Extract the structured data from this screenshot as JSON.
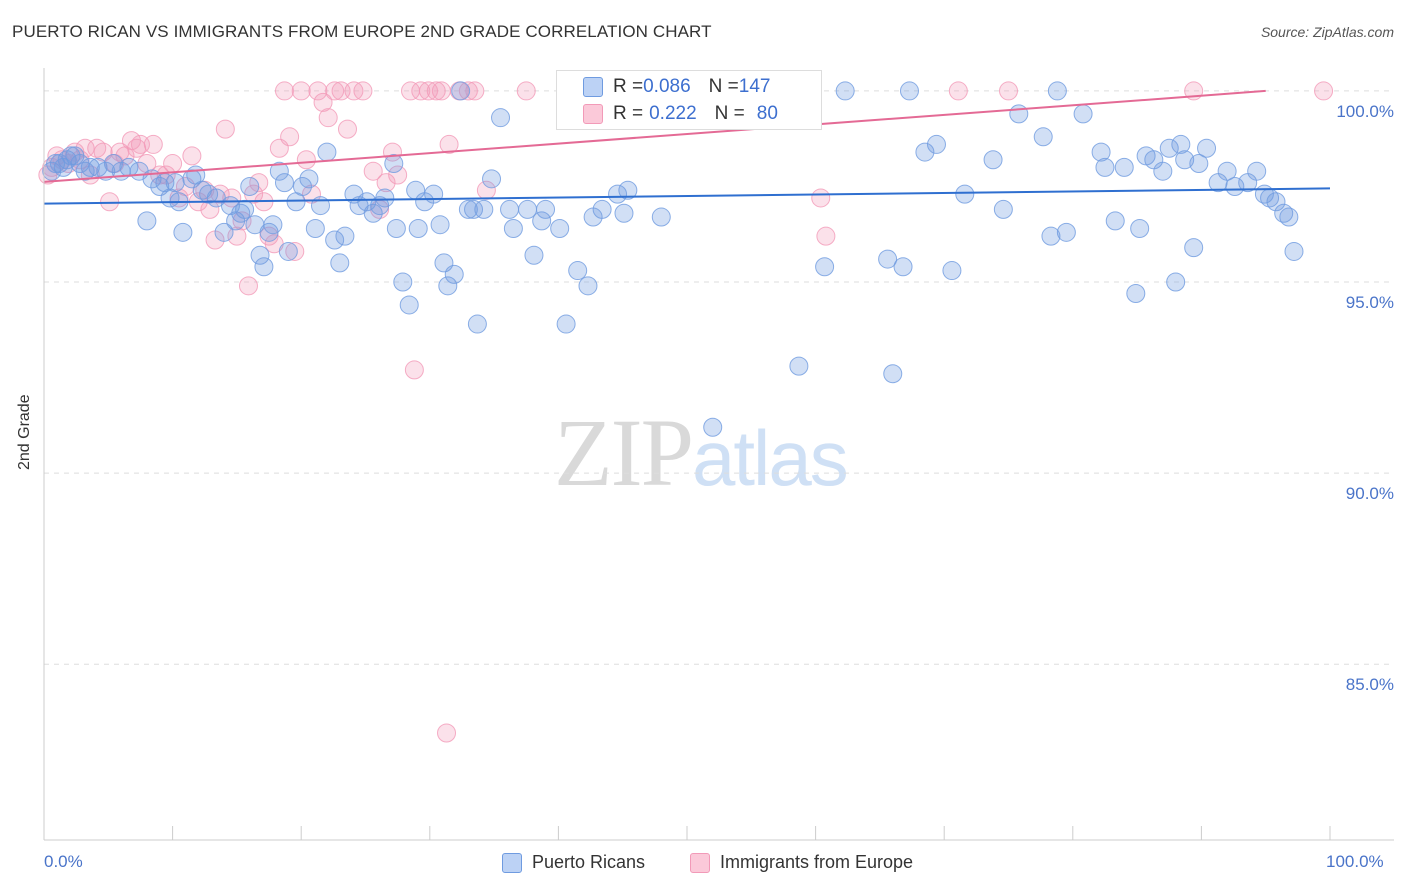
{
  "title": "PUERTO RICAN VS IMMIGRANTS FROM EUROPE 2ND GRADE CORRELATION CHART",
  "source": "Source: ZipAtlas.com",
  "watermark": {
    "zip": "ZIP",
    "atlas": "atlas"
  },
  "colors": {
    "blue": "#6f9be0",
    "blue_line": "#2f6fd0",
    "pink": "#f29ab8",
    "pink_line": "#e46a95",
    "tick_text": "#4a74c9"
  },
  "legend_box": {
    "rows": [
      {
        "r_label": "R = ",
        "r_value": "0.086",
        "n_label": "N = ",
        "n_value": "147"
      },
      {
        "r_label": "R = ",
        "r_value": "0.222",
        "n_label": "N = ",
        "n_value": "80"
      }
    ]
  },
  "chart_data": {
    "type": "scatter",
    "title": "PUERTO RICAN VS IMMIGRANTS FROM EUROPE 2ND GRADE CORRELATION CHART",
    "xlabel": "",
    "ylabel": "2nd Grade",
    "xlim": [
      0,
      100
    ],
    "ylim": [
      80.4,
      100.6
    ],
    "x_tick_labels": [
      "0.0%",
      "100.0%"
    ],
    "y_ticks": [
      85,
      90,
      95,
      100
    ],
    "y_tick_labels": [
      "85.0%",
      "90.0%",
      "95.0%",
      "100.0%"
    ],
    "grid": true,
    "legend_position": "bottom",
    "series": [
      {
        "name": "Puerto Ricans",
        "color": "#6f9be0",
        "trend": {
          "x": [
            0,
            100
          ],
          "y": [
            97.05,
            97.45
          ]
        },
        "points": [
          [
            0.6,
            97.9
          ],
          [
            0.9,
            98.1
          ],
          [
            1.2,
            98.1
          ],
          [
            1.5,
            98.0
          ],
          [
            1.8,
            98.2
          ],
          [
            2.1,
            98.3
          ],
          [
            2.4,
            98.3
          ],
          [
            2.8,
            98.1
          ],
          [
            3.2,
            97.9
          ],
          [
            3.6,
            98.0
          ],
          [
            4.2,
            98.0
          ],
          [
            4.8,
            97.9
          ],
          [
            5.4,
            98.1
          ],
          [
            6.0,
            97.9
          ],
          [
            6.6,
            98.0
          ],
          [
            7.4,
            97.9
          ],
          [
            8.0,
            96.6
          ],
          [
            8.4,
            97.7
          ],
          [
            9.0,
            97.5
          ],
          [
            9.4,
            97.6
          ],
          [
            9.8,
            97.2
          ],
          [
            10.2,
            97.6
          ],
          [
            10.5,
            97.1
          ],
          [
            10.8,
            96.3
          ],
          [
            11.5,
            97.7
          ],
          [
            11.8,
            97.8
          ],
          [
            12.3,
            97.4
          ],
          [
            12.8,
            97.3
          ],
          [
            13.4,
            97.2
          ],
          [
            14.0,
            96.3
          ],
          [
            14.5,
            97.0
          ],
          [
            14.9,
            96.6
          ],
          [
            15.3,
            96.8
          ],
          [
            15.6,
            96.9
          ],
          [
            16.0,
            97.5
          ],
          [
            16.4,
            96.5
          ],
          [
            16.8,
            95.7
          ],
          [
            17.1,
            95.4
          ],
          [
            17.5,
            96.3
          ],
          [
            17.8,
            96.5
          ],
          [
            18.3,
            97.9
          ],
          [
            18.7,
            97.6
          ],
          [
            19.0,
            95.8
          ],
          [
            19.6,
            97.1
          ],
          [
            20.1,
            97.5
          ],
          [
            20.6,
            97.7
          ],
          [
            21.1,
            96.4
          ],
          [
            21.5,
            97.0
          ],
          [
            22.0,
            98.4
          ],
          [
            22.6,
            96.1
          ],
          [
            23.0,
            95.5
          ],
          [
            23.4,
            96.2
          ],
          [
            24.1,
            97.3
          ],
          [
            24.5,
            97.0
          ],
          [
            25.1,
            97.1
          ],
          [
            25.6,
            96.8
          ],
          [
            26.1,
            97.0
          ],
          [
            26.5,
            97.2
          ],
          [
            27.2,
            98.1
          ],
          [
            27.4,
            96.4
          ],
          [
            27.9,
            95.0
          ],
          [
            28.4,
            94.4
          ],
          [
            28.9,
            97.4
          ],
          [
            29.1,
            96.4
          ],
          [
            29.6,
            97.1
          ],
          [
            30.3,
            97.3
          ],
          [
            30.8,
            96.5
          ],
          [
            31.1,
            95.5
          ],
          [
            31.4,
            94.9
          ],
          [
            31.9,
            95.2
          ],
          [
            32.4,
            100.0
          ],
          [
            33.0,
            96.9
          ],
          [
            33.4,
            96.9
          ],
          [
            33.7,
            93.9
          ],
          [
            34.2,
            96.9
          ],
          [
            34.8,
            97.7
          ],
          [
            35.5,
            99.3
          ],
          [
            36.2,
            96.9
          ],
          [
            36.5,
            96.4
          ],
          [
            37.6,
            96.9
          ],
          [
            38.1,
            95.7
          ],
          [
            38.7,
            96.6
          ],
          [
            39.0,
            96.9
          ],
          [
            40.1,
            96.4
          ],
          [
            40.6,
            93.9
          ],
          [
            41.5,
            95.3
          ],
          [
            42.3,
            94.9
          ],
          [
            42.7,
            96.7
          ],
          [
            43.4,
            96.9
          ],
          [
            44.6,
            97.3
          ],
          [
            45.1,
            96.8
          ],
          [
            45.4,
            97.4
          ],
          [
            46.4,
            100.0
          ],
          [
            47.0,
            100.0
          ],
          [
            48.0,
            96.7
          ],
          [
            50.2,
            100.0
          ],
          [
            50.6,
            100.0
          ],
          [
            52.0,
            91.2
          ],
          [
            58.7,
            92.8
          ],
          [
            60.7,
            95.4
          ],
          [
            62.3,
            100.0
          ],
          [
            65.6,
            95.6
          ],
          [
            66.0,
            92.6
          ],
          [
            66.8,
            95.4
          ],
          [
            67.3,
            100.0
          ],
          [
            68.5,
            98.4
          ],
          [
            69.4,
            98.6
          ],
          [
            70.6,
            95.3
          ],
          [
            71.6,
            97.3
          ],
          [
            73.8,
            98.2
          ],
          [
            74.6,
            96.9
          ],
          [
            75.8,
            99.4
          ],
          [
            77.7,
            98.8
          ],
          [
            78.3,
            96.2
          ],
          [
            78.8,
            100.0
          ],
          [
            79.5,
            96.3
          ],
          [
            80.8,
            99.4
          ],
          [
            82.2,
            98.4
          ],
          [
            82.5,
            98.0
          ],
          [
            83.3,
            96.6
          ],
          [
            84.0,
            98.0
          ],
          [
            84.9,
            94.7
          ],
          [
            85.2,
            96.4
          ],
          [
            85.7,
            98.3
          ],
          [
            86.3,
            98.2
          ],
          [
            87.0,
            97.9
          ],
          [
            87.5,
            98.5
          ],
          [
            88.0,
            95.0
          ],
          [
            88.4,
            98.6
          ],
          [
            88.7,
            98.2
          ],
          [
            89.4,
            95.9
          ],
          [
            89.8,
            98.1
          ],
          [
            90.4,
            98.5
          ],
          [
            91.3,
            97.6
          ],
          [
            92.0,
            97.9
          ],
          [
            92.6,
            97.5
          ],
          [
            93.6,
            97.6
          ],
          [
            94.3,
            97.9
          ],
          [
            94.9,
            97.3
          ],
          [
            95.3,
            97.2
          ],
          [
            95.8,
            97.1
          ],
          [
            96.4,
            96.8
          ],
          [
            96.8,
            96.7
          ],
          [
            97.2,
            95.8
          ]
        ]
      },
      {
        "name": "Immigrants from Europe",
        "color": "#f29ab8",
        "trend": {
          "x": [
            0,
            95
          ],
          "y": [
            97.62,
            100.0
          ]
        },
        "points": [
          [
            0.3,
            97.8
          ],
          [
            0.6,
            98.0
          ],
          [
            1.0,
            98.3
          ],
          [
            1.4,
            98.2
          ],
          [
            1.9,
            98.1
          ],
          [
            2.4,
            98.4
          ],
          [
            2.8,
            98.2
          ],
          [
            3.2,
            98.5
          ],
          [
            3.6,
            97.8
          ],
          [
            4.1,
            98.5
          ],
          [
            4.6,
            98.4
          ],
          [
            5.1,
            97.1
          ],
          [
            5.5,
            98.1
          ],
          [
            5.9,
            98.4
          ],
          [
            6.3,
            98.3
          ],
          [
            6.8,
            98.7
          ],
          [
            7.2,
            98.5
          ],
          [
            7.5,
            98.6
          ],
          [
            8.0,
            98.1
          ],
          [
            8.5,
            98.6
          ],
          [
            9.0,
            97.8
          ],
          [
            9.5,
            97.8
          ],
          [
            10.0,
            98.1
          ],
          [
            10.5,
            97.2
          ],
          [
            11.0,
            97.5
          ],
          [
            11.5,
            98.3
          ],
          [
            12.0,
            97.1
          ],
          [
            12.5,
            97.4
          ],
          [
            12.9,
            96.9
          ],
          [
            13.3,
            96.1
          ],
          [
            13.7,
            97.3
          ],
          [
            14.1,
            99.0
          ],
          [
            14.6,
            97.2
          ],
          [
            15.0,
            96.2
          ],
          [
            15.4,
            96.6
          ],
          [
            15.9,
            94.9
          ],
          [
            16.3,
            97.3
          ],
          [
            16.7,
            97.6
          ],
          [
            17.1,
            97.1
          ],
          [
            17.5,
            96.2
          ],
          [
            17.9,
            96.0
          ],
          [
            18.3,
            98.5
          ],
          [
            18.7,
            100.0
          ],
          [
            19.1,
            98.8
          ],
          [
            19.5,
            95.8
          ],
          [
            20.0,
            100.0
          ],
          [
            20.4,
            98.2
          ],
          [
            20.8,
            97.3
          ],
          [
            21.3,
            100.0
          ],
          [
            21.7,
            99.7
          ],
          [
            22.1,
            99.3
          ],
          [
            22.6,
            100.0
          ],
          [
            23.1,
            100.0
          ],
          [
            23.6,
            99.0
          ],
          [
            24.1,
            100.0
          ],
          [
            24.8,
            100.0
          ],
          [
            25.6,
            97.9
          ],
          [
            26.1,
            96.9
          ],
          [
            26.6,
            97.6
          ],
          [
            27.1,
            98.4
          ],
          [
            27.5,
            97.8
          ],
          [
            28.5,
            100.0
          ],
          [
            29.3,
            100.0
          ],
          [
            29.9,
            100.0
          ],
          [
            30.5,
            100.0
          ],
          [
            30.9,
            100.0
          ],
          [
            31.5,
            98.6
          ],
          [
            32.3,
            100.0
          ],
          [
            33.0,
            100.0
          ],
          [
            33.5,
            100.0
          ],
          [
            34.4,
            97.4
          ],
          [
            37.5,
            100.0
          ],
          [
            28.8,
            92.7
          ],
          [
            31.3,
            83.2
          ],
          [
            60.4,
            97.2
          ],
          [
            60.8,
            96.2
          ],
          [
            71.1,
            100.0
          ],
          [
            75.0,
            100.0
          ],
          [
            89.4,
            100.0
          ],
          [
            99.5,
            100.0
          ]
        ]
      }
    ]
  },
  "bottom_legend": [
    {
      "label": "Puerto Ricans"
    },
    {
      "label": "Immigrants from Europe"
    }
  ]
}
